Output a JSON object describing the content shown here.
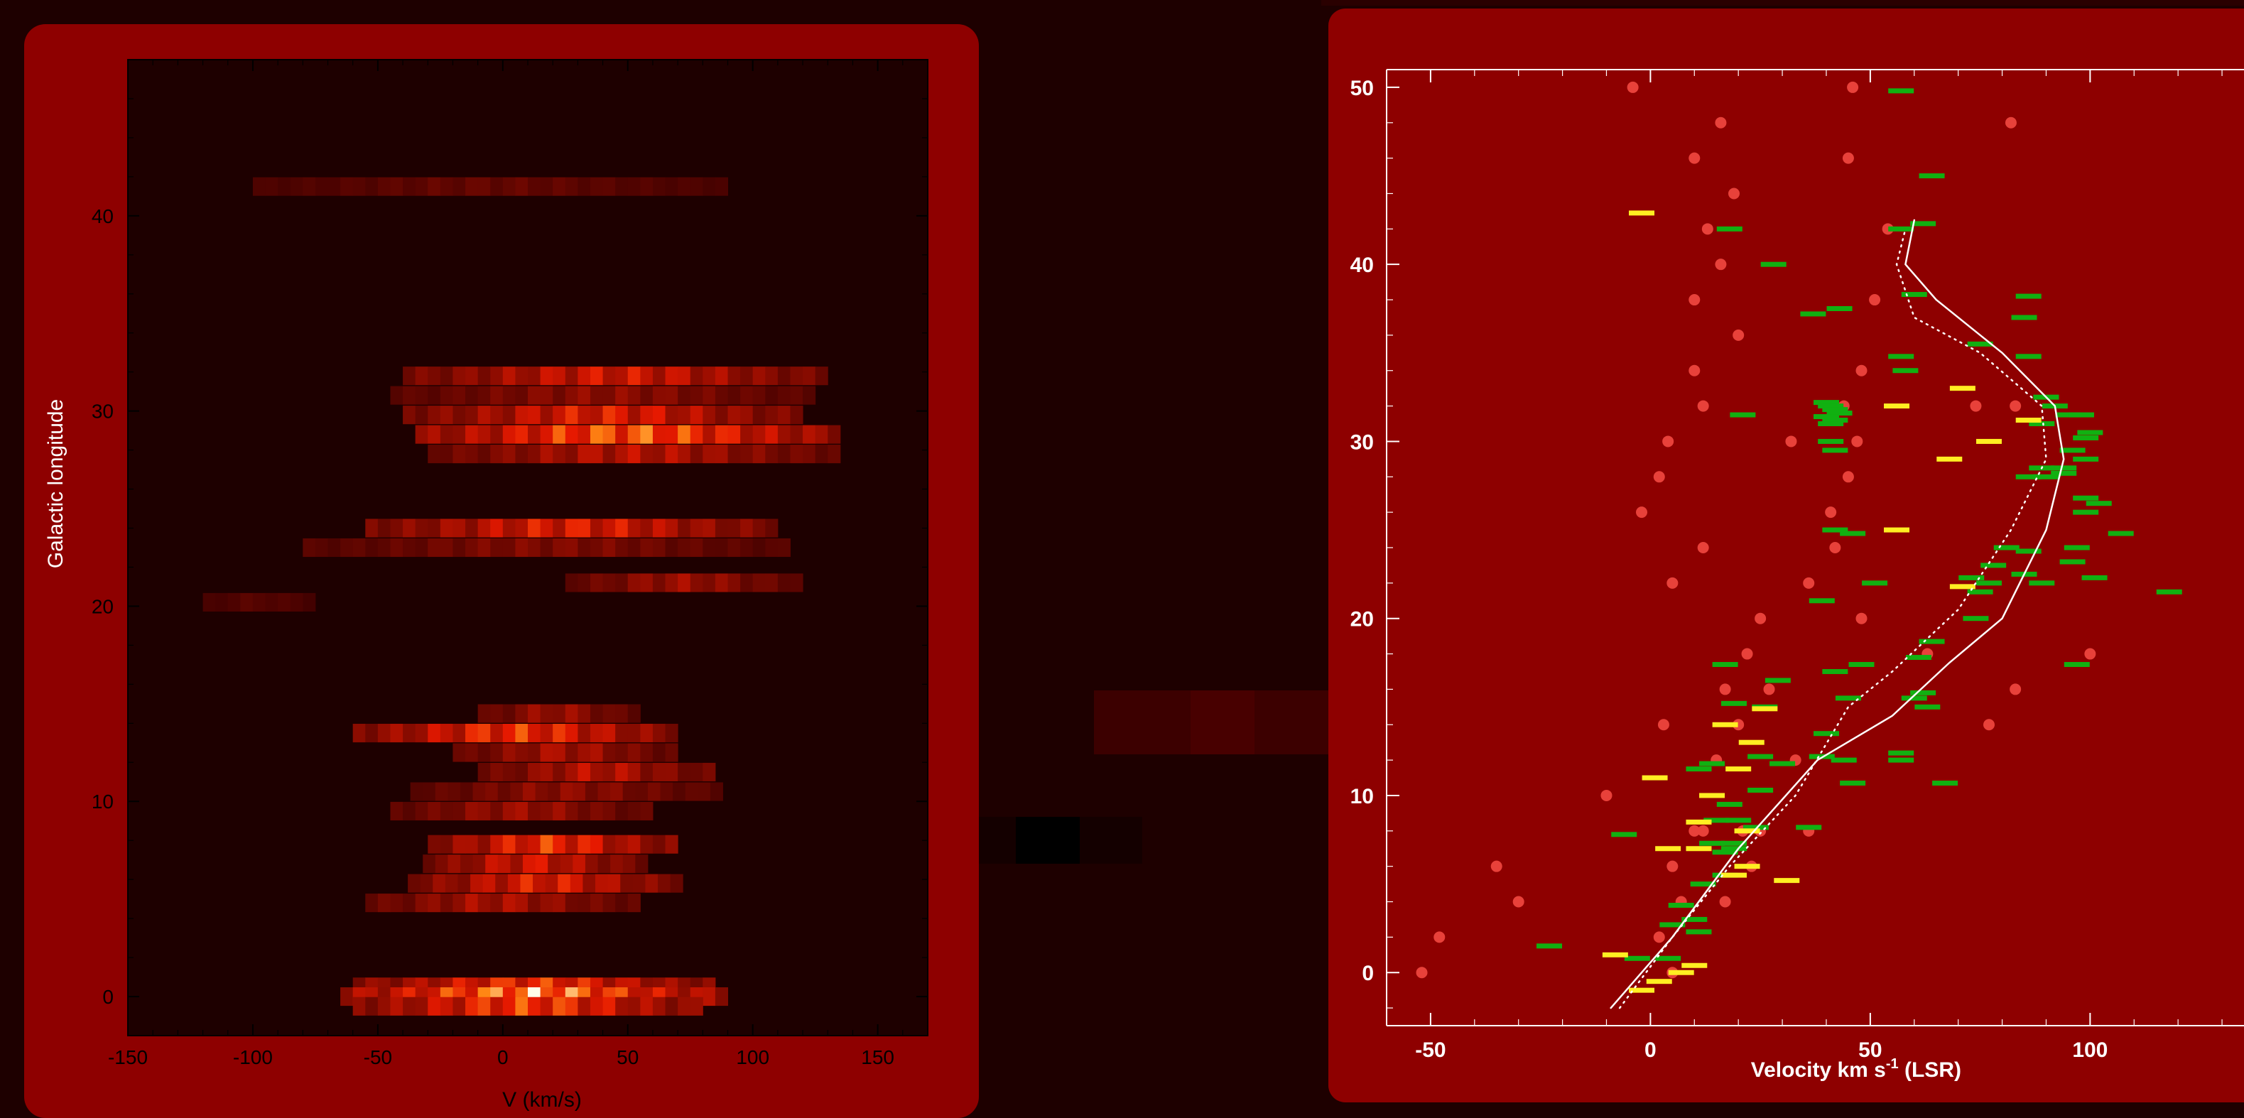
{
  "colors": {
    "background": "#1e0000",
    "panel": "#8e0000",
    "heatmap_bg": "#1e0000",
    "rotation_curve": "#ffffff",
    "green_markers": "#11b011",
    "yellow_markers": "#ffee22",
    "red_dots": "#e8413a"
  },
  "chart_data": [
    {
      "type": "heatmap",
      "xlabel": "V  (km/s)",
      "ylabel": "Galactic longitude",
      "xlim": [
        -150,
        170
      ],
      "ylim": [
        -2,
        48
      ],
      "x_ticks": [
        "-150",
        "-100",
        "-50",
        "0",
        "50",
        "100",
        "150"
      ],
      "y_ticks": [
        "0",
        "10",
        "20",
        "30",
        "40"
      ],
      "bands": [
        {
          "l": 41.5,
          "v0": -100,
          "v1": 90,
          "peak": 0.15
        },
        {
          "l": 31.8,
          "v0": -40,
          "v1": 130,
          "peak": 0.55
        },
        {
          "l": 30.8,
          "v0": -45,
          "v1": 125,
          "peak": 0.3
        },
        {
          "l": 29.8,
          "v0": -40,
          "v1": 120,
          "peak": 0.6
        },
        {
          "l": 28.8,
          "v0": -35,
          "v1": 135,
          "peak": 0.85
        },
        {
          "l": 27.8,
          "v0": -30,
          "v1": 132,
          "peak": 0.45
        },
        {
          "l": 24.0,
          "v0": -55,
          "v1": 110,
          "peak": 0.6
        },
        {
          "l": 23.0,
          "v0": -80,
          "v1": 115,
          "peak": 0.25
        },
        {
          "l": 21.2,
          "v0": 25,
          "v1": 118,
          "peak": 0.35
        },
        {
          "l": 20.2,
          "v0": -120,
          "v1": -75,
          "peak": 0.1
        },
        {
          "l": 14.5,
          "v0": -10,
          "v1": 52,
          "peak": 0.35
        },
        {
          "l": 13.5,
          "v0": -60,
          "v1": 70,
          "peak": 0.7
        },
        {
          "l": 12.5,
          "v0": -20,
          "v1": 68,
          "peak": 0.4
        },
        {
          "l": 11.5,
          "v0": -10,
          "v1": 85,
          "peak": 0.45
        },
        {
          "l": 10.5,
          "v0": -37,
          "v1": 85,
          "peak": 0.3
        },
        {
          "l": 9.5,
          "v0": -45,
          "v1": 60,
          "peak": 0.35
        },
        {
          "l": 7.8,
          "v0": -30,
          "v1": 68,
          "peak": 0.7
        },
        {
          "l": 6.8,
          "v0": -32,
          "v1": 55,
          "peak": 0.55
        },
        {
          "l": 5.8,
          "v0": -38,
          "v1": 70,
          "peak": 0.6
        },
        {
          "l": 4.8,
          "v0": -55,
          "v1": 52,
          "peak": 0.4
        },
        {
          "l": 0.5,
          "v0": -60,
          "v1": 85,
          "peak": 0.7
        },
        {
          "l": 0.0,
          "v0": -65,
          "v1": 88,
          "peak": 1.0
        },
        {
          "l": -0.5,
          "v0": -60,
          "v1": 80,
          "peak": 0.75
        }
      ]
    },
    {
      "type": "scatter",
      "xlabel": "Velocity km s",
      "xlabel_sup": "-1",
      "xlabel_suffix": " (LSR)",
      "xlim": [
        -60,
        135
      ],
      "ylim": [
        -3,
        51
      ],
      "x_ticks": [
        "-50",
        "0",
        "50",
        "100"
      ],
      "y_ticks": [
        "0",
        "10",
        "20",
        "30",
        "40",
        "50"
      ],
      "series": [
        {
          "marker": "circle",
          "color": "red",
          "points": [
            [
              -4,
              50
            ],
            [
              16,
              48
            ],
            [
              46,
              50
            ],
            [
              82,
              48
            ],
            [
              10,
              46
            ],
            [
              45,
              46
            ],
            [
              19,
              44
            ],
            [
              13,
              42
            ],
            [
              54,
              42
            ],
            [
              16,
              40
            ],
            [
              10,
              38
            ],
            [
              51,
              38
            ],
            [
              20,
              36
            ],
            [
              10,
              34
            ],
            [
              48,
              34
            ],
            [
              12,
              32
            ],
            [
              44,
              32
            ],
            [
              74,
              32
            ],
            [
              83,
              32
            ],
            [
              4,
              30
            ],
            [
              32,
              30
            ],
            [
              47,
              30
            ],
            [
              2,
              28
            ],
            [
              45,
              28
            ],
            [
              -2,
              26
            ],
            [
              41,
              26
            ],
            [
              12,
              24
            ],
            [
              42,
              24
            ],
            [
              5,
              22
            ],
            [
              36,
              22
            ],
            [
              25,
              20
            ],
            [
              48,
              20
            ],
            [
              22,
              18
            ],
            [
              63,
              18
            ],
            [
              100,
              18
            ],
            [
              17,
              16
            ],
            [
              27,
              16
            ],
            [
              83,
              16
            ],
            [
              3,
              14
            ],
            [
              20,
              14
            ],
            [
              77,
              14
            ],
            [
              15,
              12
            ],
            [
              33,
              12
            ],
            [
              -10,
              10
            ],
            [
              10,
              8
            ],
            [
              12,
              8
            ],
            [
              21,
              8
            ],
            [
              25,
              8
            ],
            [
              36,
              8
            ],
            [
              5,
              6
            ],
            [
              23,
              6
            ],
            [
              -35,
              6
            ],
            [
              -30,
              4
            ],
            [
              7,
              4
            ],
            [
              17,
              4
            ],
            [
              2,
              2
            ],
            [
              -48,
              2
            ],
            [
              5,
              0
            ],
            [
              -52,
              0
            ]
          ]
        },
        {
          "marker": "dash",
          "color": "green",
          "points": [
            [
              57,
              49.8
            ],
            [
              64,
              45
            ],
            [
              18,
              42
            ],
            [
              57,
              42
            ],
            [
              62,
              42.3
            ],
            [
              28,
              40
            ],
            [
              60,
              38.3
            ],
            [
              37,
              37.2
            ],
            [
              43,
              37.5
            ],
            [
              86,
              38.2
            ],
            [
              85,
              37
            ],
            [
              75,
              35.5
            ],
            [
              57,
              34.8
            ],
            [
              86,
              34.8
            ],
            [
              58,
              34
            ],
            [
              40,
              32.2
            ],
            [
              41,
              32
            ],
            [
              42,
              31.8
            ],
            [
              43,
              31.6
            ],
            [
              40,
              31.4
            ],
            [
              42,
              31.2
            ],
            [
              41,
              31
            ],
            [
              21,
              31.5
            ],
            [
              90,
              32.5
            ],
            [
              92,
              32
            ],
            [
              95,
              31.5
            ],
            [
              98,
              31.5
            ],
            [
              89,
              31
            ],
            [
              100,
              30.5
            ],
            [
              99,
              30.2
            ],
            [
              96,
              29.5
            ],
            [
              41,
              30
            ],
            [
              42,
              29.5
            ],
            [
              99,
              29
            ],
            [
              94,
              28.5
            ],
            [
              89,
              28.5
            ],
            [
              90,
              28
            ],
            [
              94,
              28.2
            ],
            [
              86,
              28
            ],
            [
              99,
              26.8
            ],
            [
              102,
              26.5
            ],
            [
              99,
              26
            ],
            [
              81,
              24
            ],
            [
              97,
              24
            ],
            [
              107,
              24.8
            ],
            [
              42,
              25
            ],
            [
              46,
              24.8
            ],
            [
              86,
              23.8
            ],
            [
              96,
              23.2
            ],
            [
              78,
              23
            ],
            [
              85,
              22.5
            ],
            [
              89,
              22
            ],
            [
              101,
              22.3
            ],
            [
              51,
              22
            ],
            [
              73,
              22.3
            ],
            [
              75,
              21.5
            ],
            [
              77,
              22
            ],
            [
              39,
              21
            ],
            [
              118,
              21.5
            ],
            [
              74,
              20
            ],
            [
              64,
              18.7
            ],
            [
              61,
              17.8
            ],
            [
              97,
              17.4
            ],
            [
              17,
              17.4
            ],
            [
              29,
              16.5
            ],
            [
              42,
              17
            ],
            [
              48,
              17.4
            ],
            [
              26,
              15
            ],
            [
              45,
              15.5
            ],
            [
              60,
              15.5
            ],
            [
              62,
              15.8
            ],
            [
              63,
              15
            ],
            [
              19,
              15.2
            ],
            [
              40,
              13.5
            ],
            [
              25,
              12.2
            ],
            [
              39,
              12.2
            ],
            [
              44,
              12
            ],
            [
              57,
              12.4
            ],
            [
              14,
              11.8
            ],
            [
              11,
              11.5
            ],
            [
              57,
              12
            ],
            [
              30,
              11.8
            ],
            [
              46,
              10.7
            ],
            [
              67,
              10.7
            ],
            [
              25,
              10.3
            ],
            [
              18,
              9.5
            ],
            [
              -6,
              7.8
            ],
            [
              15,
              8.6
            ],
            [
              20,
              8.6
            ],
            [
              24,
              8.2
            ],
            [
              36,
              8.2
            ],
            [
              14,
              7.3
            ],
            [
              19,
              7.3
            ],
            [
              19,
              7
            ],
            [
              17,
              6.8
            ],
            [
              17,
              5.5
            ],
            [
              12,
              5
            ],
            [
              7,
              3.8
            ],
            [
              10,
              3
            ],
            [
              5,
              2.7
            ],
            [
              11,
              2.3
            ],
            [
              -23,
              1.5
            ],
            [
              -3,
              0.8
            ],
            [
              4,
              0.8
            ]
          ]
        },
        {
          "marker": "dash",
          "color": "yellow",
          "points": [
            [
              -2,
              42.9
            ],
            [
              56,
              32
            ],
            [
              71,
              33
            ],
            [
              86,
              31.2
            ],
            [
              77,
              30
            ],
            [
              68,
              29
            ],
            [
              56,
              25
            ],
            [
              71,
              21.8
            ],
            [
              26,
              14.9
            ],
            [
              17,
              14
            ],
            [
              23,
              13
            ],
            [
              20,
              11.5
            ],
            [
              1,
              11
            ],
            [
              14,
              10
            ],
            [
              11,
              8.5
            ],
            [
              22,
              8
            ],
            [
              4,
              7
            ],
            [
              11,
              7
            ],
            [
              22,
              6
            ],
            [
              19,
              5.5
            ],
            [
              31,
              5.2
            ],
            [
              -8,
              1
            ],
            [
              10,
              0.4
            ],
            [
              7,
              0
            ],
            [
              2,
              -0.5
            ],
            [
              -2,
              -1
            ]
          ]
        },
        {
          "name": "solid_curve",
          "style": "solid",
          "points": [
            [
              -9,
              -2
            ],
            [
              5,
              2
            ],
            [
              20,
              7
            ],
            [
              38,
              12
            ],
            [
              55,
              14.5
            ],
            [
              68,
              17.5
            ],
            [
              80,
              20
            ],
            [
              90,
              25
            ],
            [
              94,
              29
            ],
            [
              92,
              32
            ],
            [
              80,
              35
            ],
            [
              65,
              38
            ],
            [
              58,
              40
            ],
            [
              60,
              42.5
            ]
          ]
        },
        {
          "name": "dotted_curve",
          "style": "dotted",
          "points": [
            [
              -7,
              -2
            ],
            [
              5,
              2
            ],
            [
              18,
              6
            ],
            [
              33,
              10
            ],
            [
              45,
              15
            ],
            [
              55,
              17
            ],
            [
              70,
              20.5
            ],
            [
              82,
              25
            ],
            [
              90,
              29
            ],
            [
              89,
              32
            ],
            [
              75,
              35
            ],
            [
              60,
              37
            ],
            [
              56,
              40
            ],
            [
              58,
              42
            ]
          ]
        }
      ]
    }
  ]
}
